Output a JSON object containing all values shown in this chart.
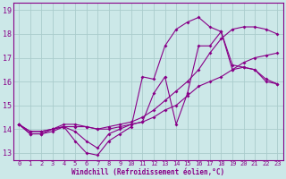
{
  "xlabel": "Windchill (Refroidissement éolien,°C)",
  "bg_color": "#cce8e8",
  "grid_color": "#aacccc",
  "line_color": "#880088",
  "spine_color": "#880088",
  "xlim": [
    -0.5,
    23.5
  ],
  "ylim": [
    12.7,
    19.3
  ],
  "yticks": [
    13,
    14,
    15,
    16,
    17,
    18,
    19
  ],
  "xticks": [
    0,
    1,
    2,
    3,
    4,
    5,
    6,
    7,
    8,
    9,
    10,
    11,
    12,
    13,
    14,
    15,
    16,
    17,
    18,
    19,
    20,
    21,
    22,
    23
  ],
  "series": [
    {
      "x": [
        0,
        1,
        2,
        3,
        4,
        5,
        6,
        7,
        8,
        9,
        10,
        11,
        12,
        13,
        14,
        15,
        16,
        17,
        18,
        19,
        20,
        21,
        22,
        23
      ],
      "y": [
        14.2,
        13.8,
        13.8,
        13.9,
        14.1,
        13.5,
        13.0,
        12.9,
        13.5,
        13.8,
        14.1,
        16.2,
        16.1,
        17.5,
        18.2,
        18.5,
        18.7,
        18.3,
        18.1,
        16.5,
        16.6,
        16.5,
        16.0,
        15.9
      ]
    },
    {
      "x": [
        0,
        1,
        2,
        3,
        4,
        5,
        6,
        7,
        8,
        9,
        10,
        11,
        12,
        13,
        14,
        15,
        16,
        17,
        18,
        19,
        20,
        21,
        22,
        23
      ],
      "y": [
        14.2,
        13.8,
        13.8,
        14.0,
        14.1,
        13.9,
        13.5,
        13.2,
        13.8,
        14.0,
        14.2,
        14.3,
        15.5,
        16.2,
        14.2,
        15.5,
        17.5,
        17.5,
        18.1,
        16.7,
        16.6,
        16.5,
        16.1,
        15.9
      ]
    },
    {
      "x": [
        0,
        1,
        2,
        3,
        4,
        5,
        6,
        7,
        8,
        9,
        10,
        11,
        12,
        13,
        14,
        15,
        16,
        17,
        18,
        19,
        20,
        21,
        22,
        23
      ],
      "y": [
        14.2,
        13.9,
        13.9,
        14.0,
        14.1,
        14.1,
        14.1,
        14.0,
        14.0,
        14.1,
        14.2,
        14.3,
        14.5,
        14.8,
        15.0,
        15.4,
        15.8,
        16.0,
        16.2,
        16.5,
        16.8,
        17.0,
        17.1,
        17.2
      ]
    },
    {
      "x": [
        0,
        1,
        2,
        3,
        4,
        5,
        6,
        7,
        8,
        9,
        10,
        11,
        12,
        13,
        14,
        15,
        16,
        17,
        18,
        19,
        20,
        21,
        22,
        23
      ],
      "y": [
        14.2,
        13.9,
        13.9,
        14.0,
        14.2,
        14.2,
        14.1,
        14.0,
        14.1,
        14.2,
        14.3,
        14.5,
        14.8,
        15.2,
        15.6,
        16.0,
        16.5,
        17.2,
        17.8,
        18.2,
        18.3,
        18.3,
        18.2,
        18.0
      ]
    }
  ]
}
